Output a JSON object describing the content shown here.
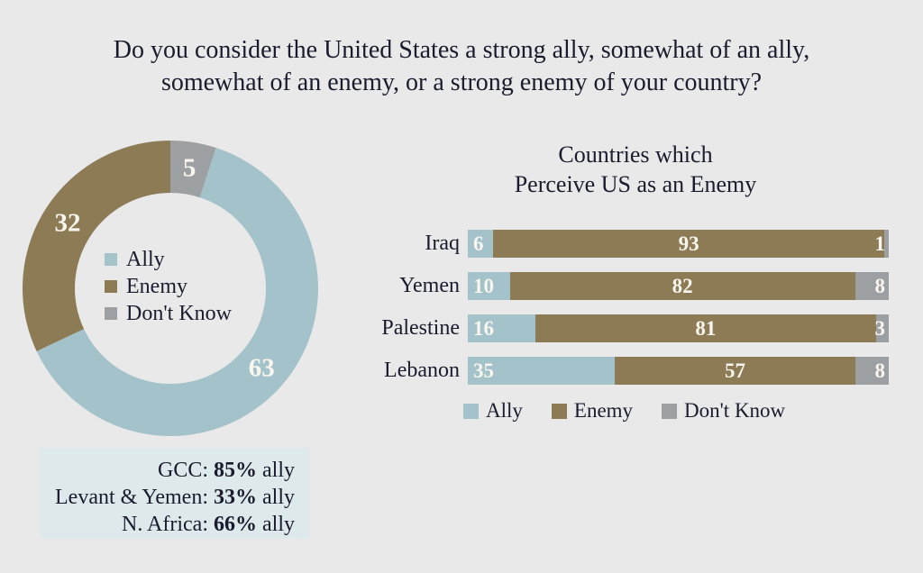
{
  "background_color": "#e9e9e9",
  "text_color": "#1b1b2e",
  "value_label_color": "#f8f6ee",
  "title": {
    "line1": "Do you consider the United States a strong ally, somewhat of an ally,",
    "line2": "somewhat of an enemy, or a strong enemy of your country?"
  },
  "chart_data": [
    {
      "type": "pie",
      "subtype": "donut",
      "legend_position": "center",
      "segments": [
        {
          "name": "Ally",
          "value": 63,
          "color": "#a4c2ca"
        },
        {
          "name": "Enemy",
          "value": 32,
          "color": "#8c7b55"
        },
        {
          "name": "Don't Know",
          "value": 5,
          "color": "#9da0a3"
        }
      ],
      "draw_order_clockwise_from_top": [
        2,
        0,
        1
      ],
      "outer_radius": 164,
      "inner_radius": 106
    },
    {
      "type": "bar",
      "subtype": "stacked-horizontal",
      "title_lines": [
        "Countries which",
        "Perceive US as an Enemy"
      ],
      "categories": [
        "Iraq",
        "Yemen",
        "Palestine",
        "Lebanon"
      ],
      "series": [
        {
          "name": "Ally",
          "color": "#a4c2ca",
          "values": [
            6,
            10,
            16,
            35
          ]
        },
        {
          "name": "Enemy",
          "color": "#8c7b55",
          "values": [
            93,
            82,
            81,
            57
          ]
        },
        {
          "name": "Don't Know",
          "color": "#9da0a3",
          "values": [
            1,
            8,
            3,
            8
          ]
        }
      ],
      "xlim": [
        0,
        100
      ],
      "legend_position": "bottom",
      "legend": [
        "Ally",
        "Enemy",
        "Don't Know"
      ]
    }
  ],
  "summary_box": {
    "background": "#dde9eb",
    "lines": [
      {
        "label": "GCC:",
        "value": "85%",
        "suffix": "ally"
      },
      {
        "label": "Levant & Yemen:",
        "value": "33%",
        "suffix": "ally"
      },
      {
        "label": "N. Africa:",
        "value": "66%",
        "suffix": "ally"
      }
    ]
  }
}
